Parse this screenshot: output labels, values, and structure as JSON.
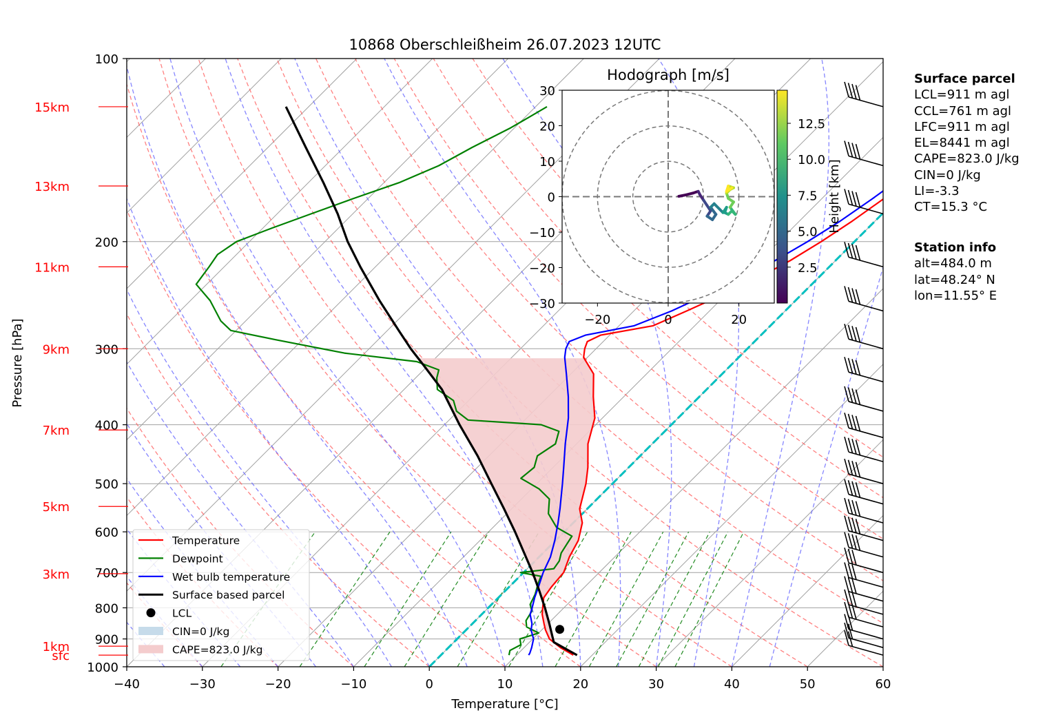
{
  "chart_data": {
    "type": "skew-t log-p diagram with hodograph inset",
    "title": "10868 Oberschleißheim 26.07.2023 12UTC",
    "xlabel": "Temperature [°C]",
    "ylabel": "Pressure [hPa]",
    "xlim": [
      -40,
      60
    ],
    "ylim": [
      1000,
      100
    ],
    "y_scale": "log",
    "x_ticks": [
      "−40",
      "−30",
      "−20",
      "−10",
      "0",
      "10",
      "20",
      "30",
      "40",
      "50",
      "60"
    ],
    "y_ticks": [
      "1000",
      "900",
      "800",
      "700",
      "600",
      "500",
      "400",
      "300",
      "200",
      "100"
    ],
    "grid": true,
    "height_labels": [
      {
        "label": "sfc",
        "p": 957
      },
      {
        "label": "1km",
        "p": 925
      },
      {
        "label": "3km",
        "p": 703
      },
      {
        "label": "5km",
        "p": 545
      },
      {
        "label": "7km",
        "p": 408
      },
      {
        "label": "9km",
        "p": 300
      },
      {
        "label": "11km",
        "p": 220
      },
      {
        "label": "13km",
        "p": 162
      },
      {
        "label": "15km",
        "p": 120
      }
    ],
    "colors": {
      "temperature": "#ff0000",
      "dewpoint": "#008000",
      "wetbulb": "#0000ff",
      "parcel": "#000000",
      "cape_fill": "#f4cccd",
      "cin_fill": "#c6dbea",
      "freezing_level": "#00bfbf",
      "dry_adiabat": "#ff6060",
      "moist_adiabat": "#6666ff",
      "mixing_ratio": "#228b22",
      "isotherm": "#a0a0a0",
      "height_label": "#ff0000"
    },
    "series": [
      {
        "name": "Temperature",
        "points": [
          [
            957,
            17.5
          ],
          [
            930,
            14.8
          ],
          [
            900,
            12.2
          ],
          [
            870,
            10.5
          ],
          [
            850,
            9.5
          ],
          [
            820,
            8
          ],
          [
            800,
            7.2
          ],
          [
            770,
            6
          ],
          [
            740,
            5.6
          ],
          [
            700,
            5.3
          ],
          [
            660,
            4
          ],
          [
            620,
            3
          ],
          [
            580,
            1.2
          ],
          [
            550,
            -1
          ],
          [
            500,
            -3.5
          ],
          [
            470,
            -5.4
          ],
          [
            430,
            -8.5
          ],
          [
            390,
            -11
          ],
          [
            360,
            -14
          ],
          [
            330,
            -17
          ],
          [
            310,
            -20.5
          ],
          [
            300,
            -21.5
          ],
          [
            292,
            -22.1
          ],
          [
            285,
            -21.2
          ],
          [
            275,
            -15.5
          ],
          [
            260,
            -13
          ],
          [
            245,
            -10.5
          ],
          [
            230,
            -8
          ],
          [
            215,
            -6
          ],
          [
            200,
            -4.4
          ],
          [
            185,
            -3
          ],
          [
            170,
            -1.8
          ],
          [
            155,
            -0.7
          ],
          [
            145,
            0.4
          ],
          [
            135,
            1.2
          ],
          [
            128,
            1.6
          ],
          [
            122,
            2.2
          ],
          [
            120,
            3
          ]
        ]
      },
      {
        "name": "Dewpoint",
        "points": [
          [
            957,
            9
          ],
          [
            940,
            8.5
          ],
          [
            920,
            9.2
          ],
          [
            900,
            8.3
          ],
          [
            880,
            10
          ],
          [
            860,
            7.6
          ],
          [
            840,
            6.7
          ],
          [
            810,
            6.2
          ],
          [
            790,
            5.1
          ],
          [
            760,
            4.4
          ],
          [
            730,
            3.4
          ],
          [
            710,
            2.8
          ],
          [
            700,
            -0.4
          ],
          [
            690,
            3.5
          ],
          [
            670,
            3.2
          ],
          [
            650,
            2.4
          ],
          [
            630,
            2
          ],
          [
            610,
            1.6
          ],
          [
            590,
            -1.6
          ],
          [
            560,
            -4.5
          ],
          [
            530,
            -6.3
          ],
          [
            510,
            -9
          ],
          [
            490,
            -12.8
          ],
          [
            470,
            -12.5
          ],
          [
            450,
            -13.6
          ],
          [
            430,
            -12.8
          ],
          [
            410,
            -14
          ],
          [
            400,
            -17.2
          ],
          [
            393,
            -27.5
          ],
          [
            380,
            -30.2
          ],
          [
            365,
            -32
          ],
          [
            350,
            -35.6
          ],
          [
            335,
            -37.2
          ],
          [
            325,
            -38
          ],
          [
            315,
            -42
          ],
          [
            305,
            -52.7
          ],
          [
            290,
            -63.5
          ],
          [
            280,
            -70.7
          ],
          [
            270,
            -73.3
          ],
          [
            250,
            -77.4
          ],
          [
            235,
            -81.4
          ],
          [
            220,
            -82
          ],
          [
            210,
            -82.5
          ],
          [
            200,
            -81.7
          ],
          [
            190,
            -78.8
          ],
          [
            180,
            -75.5
          ],
          [
            170,
            -72
          ],
          [
            160,
            -68
          ],
          [
            150,
            -65
          ],
          [
            140,
            -63
          ],
          [
            130,
            -60.5
          ],
          [
            125,
            -59.5
          ],
          [
            120,
            -58.5
          ]
        ]
      },
      {
        "name": "Wet bulb temperature",
        "points": [
          [
            957,
            11.6
          ],
          [
            950,
            11.5
          ],
          [
            930,
            11
          ],
          [
            900,
            10.1
          ],
          [
            870,
            8.6
          ],
          [
            850,
            7.9
          ],
          [
            820,
            6.4
          ],
          [
            800,
            5.8
          ],
          [
            770,
            4.8
          ],
          [
            740,
            3.9
          ],
          [
            700,
            2.6
          ],
          [
            660,
            1.5
          ],
          [
            620,
            -0.1
          ],
          [
            580,
            -2
          ],
          [
            550,
            -3.6
          ],
          [
            500,
            -6.6
          ],
          [
            470,
            -8.6
          ],
          [
            430,
            -11.5
          ],
          [
            390,
            -14.5
          ],
          [
            360,
            -17.3
          ],
          [
            330,
            -20.6
          ],
          [
            310,
            -23
          ],
          [
            300,
            -24
          ],
          [
            292,
            -24.5
          ],
          [
            285,
            -23.2
          ],
          [
            275,
            -18
          ],
          [
            260,
            -15
          ],
          [
            245,
            -12.6
          ],
          [
            230,
            -10
          ],
          [
            215,
            -8
          ],
          [
            200,
            -6.2
          ],
          [
            185,
            -4.6
          ],
          [
            170,
            -3.3
          ],
          [
            155,
            -2.1
          ],
          [
            145,
            -0.9
          ],
          [
            135,
            -0.2
          ],
          [
            128,
            0.3
          ],
          [
            122,
            1
          ],
          [
            120,
            1.8
          ]
        ]
      },
      {
        "name": "Surface based parcel",
        "points": [
          [
            957,
            18
          ],
          [
            930,
            15.2
          ],
          [
            911,
            13.2
          ],
          [
            880,
            11.7
          ],
          [
            850,
            10.2
          ],
          [
            800,
            7.5
          ],
          [
            750,
            4.5
          ],
          [
            700,
            1.2
          ],
          [
            650,
            -2.5
          ],
          [
            600,
            -6.5
          ],
          [
            550,
            -11
          ],
          [
            500,
            -16
          ],
          [
            450,
            -21.5
          ],
          [
            400,
            -28
          ],
          [
            350,
            -35
          ],
          [
            320,
            -40.5
          ],
          [
            300,
            -44.5
          ],
          [
            280,
            -48.5
          ],
          [
            250,
            -55
          ],
          [
            220,
            -62
          ],
          [
            200,
            -67
          ],
          [
            180,
            -72
          ],
          [
            160,
            -78
          ],
          [
            140,
            -85
          ],
          [
            120,
            -93
          ]
        ]
      }
    ],
    "cape_label": "CAPE=823.0 J/kg",
    "cin_label": "CIN=0 J/kg",
    "lcl": {
      "label": "LCL",
      "p": 868,
      "t": 12.3
    },
    "freezing_level": {
      "p_start": 1000,
      "t_start": 0,
      "p_end": 600,
      "t_end": 0
    },
    "legend": {
      "position": "lower-left",
      "entries": [
        "Temperature",
        "Dewpoint",
        "Wet bulb temperature",
        "Surface based parcel",
        "LCL",
        "CIN=0 J/kg",
        "CAPE=823.0 J/kg"
      ]
    },
    "wind_barbs_p": [
      957,
      930,
      900,
      860,
      820,
      780,
      740,
      700,
      660,
      620,
      580,
      540,
      500,
      460,
      420,
      380,
      340,
      300,
      260,
      220,
      180,
      150,
      120
    ],
    "hodograph": {
      "title": "Hodograph [m/s]",
      "xlim": [
        -30,
        30
      ],
      "ylim": [
        -30,
        30
      ],
      "ticks": [
        "−30",
        "−20",
        "−10",
        "0",
        "10",
        "20",
        "30"
      ],
      "x_ticks": [
        "−20",
        "0",
        "20"
      ],
      "rings": [
        10,
        20,
        30
      ],
      "colorbar_label": "Height [km]",
      "colorbar_ticks": [
        "2.5",
        "5.0",
        "7.5",
        "10.0",
        "12.5"
      ],
      "colorbar_range": [
        0,
        14.8
      ],
      "points": [
        [
          3,
          0.1,
          0.3
        ],
        [
          5,
          0.5,
          0.8
        ],
        [
          7,
          1,
          1.3
        ],
        [
          8.5,
          1.5,
          2
        ],
        [
          9,
          0.5,
          2.5
        ],
        [
          10,
          -1,
          3
        ],
        [
          11,
          -2.5,
          3.6
        ],
        [
          12,
          -4,
          4.2
        ],
        [
          11,
          -5.5,
          4.8
        ],
        [
          12.5,
          -6.5,
          5.3
        ],
        [
          13.5,
          -5,
          5.8
        ],
        [
          12,
          -3,
          6.3
        ],
        [
          13,
          -2,
          6.8
        ],
        [
          14.5,
          -3.5,
          7.3
        ],
        [
          15.5,
          -4.5,
          7.8
        ],
        [
          16.5,
          -3,
          8.3
        ],
        [
          16,
          -4.5,
          8.8
        ],
        [
          17,
          -5,
          9.3
        ],
        [
          18,
          -4,
          9.8
        ],
        [
          19,
          -5,
          10.3
        ],
        [
          17.5,
          -3,
          10.8
        ],
        [
          18.5,
          -1.5,
          11.3
        ],
        [
          17,
          -0.5,
          11.8
        ],
        [
          16.5,
          1,
          12.3
        ],
        [
          17.5,
          2,
          12.8
        ],
        [
          18.5,
          2.5,
          13.3
        ],
        [
          17,
          3,
          13.8
        ],
        [
          16.5,
          1.5,
          14.3
        ],
        [
          18,
          2.5,
          14.7
        ]
      ]
    }
  },
  "surface_parcel": {
    "heading": "Surface parcel",
    "lines": [
      "LCL=911 m agl",
      "CCL=761 m agl",
      "LFC=911 m agl",
      "EL=8441 m agl",
      "CAPE=823.0 J/kg",
      "CIN=0 J/kg",
      "LI=-3.3",
      "CT=15.3 °C"
    ]
  },
  "station_info": {
    "heading": "Station info",
    "lines": [
      "alt=484.0 m",
      "lat=48.24° N",
      "lon=11.55° E"
    ]
  }
}
